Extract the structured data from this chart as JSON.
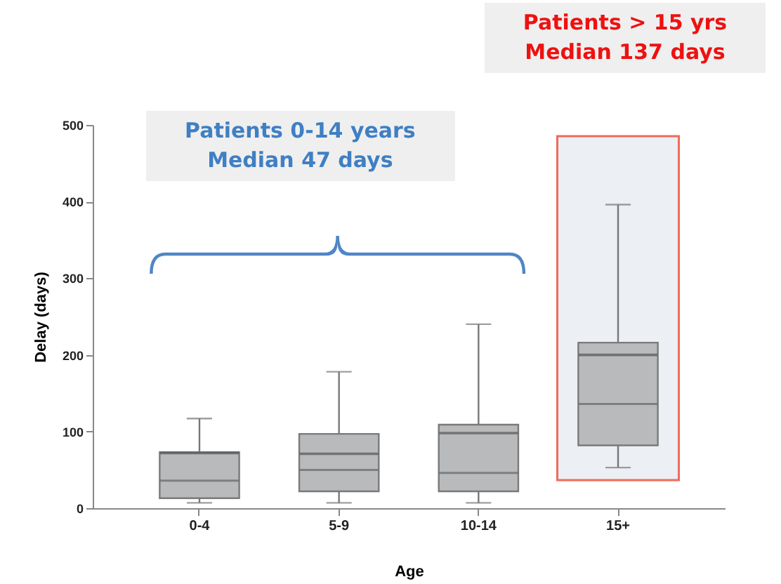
{
  "chart_data": {
    "type": "box",
    "categories": [
      "0-4",
      "5-9",
      "10-14",
      "15+"
    ],
    "boxes": [
      {
        "low": 7,
        "q1": 13,
        "median": 36,
        "q3": 73,
        "high": 117,
        "mean": 72
      },
      {
        "low": 7,
        "q1": 22,
        "median": 50,
        "q3": 97,
        "high": 178,
        "mean": 71
      },
      {
        "low": 7,
        "q1": 22,
        "median": 46,
        "q3": 109,
        "high": 240,
        "mean": 98
      },
      {
        "low": 53,
        "q1": 82,
        "median": 136,
        "q3": 216,
        "high": 396,
        "mean": 200
      }
    ],
    "color": "#b8babc",
    "xlabel": "Age",
    "ylabel": "Delay (days)",
    "ylim": [
      0,
      500
    ],
    "yticks": [
      0,
      100,
      200,
      300,
      400,
      500
    ],
    "annotations": [
      "Patients 0-14 years",
      "Median 47 days",
      "Patients > 15 yrs",
      "Median 137 days"
    ]
  }
}
